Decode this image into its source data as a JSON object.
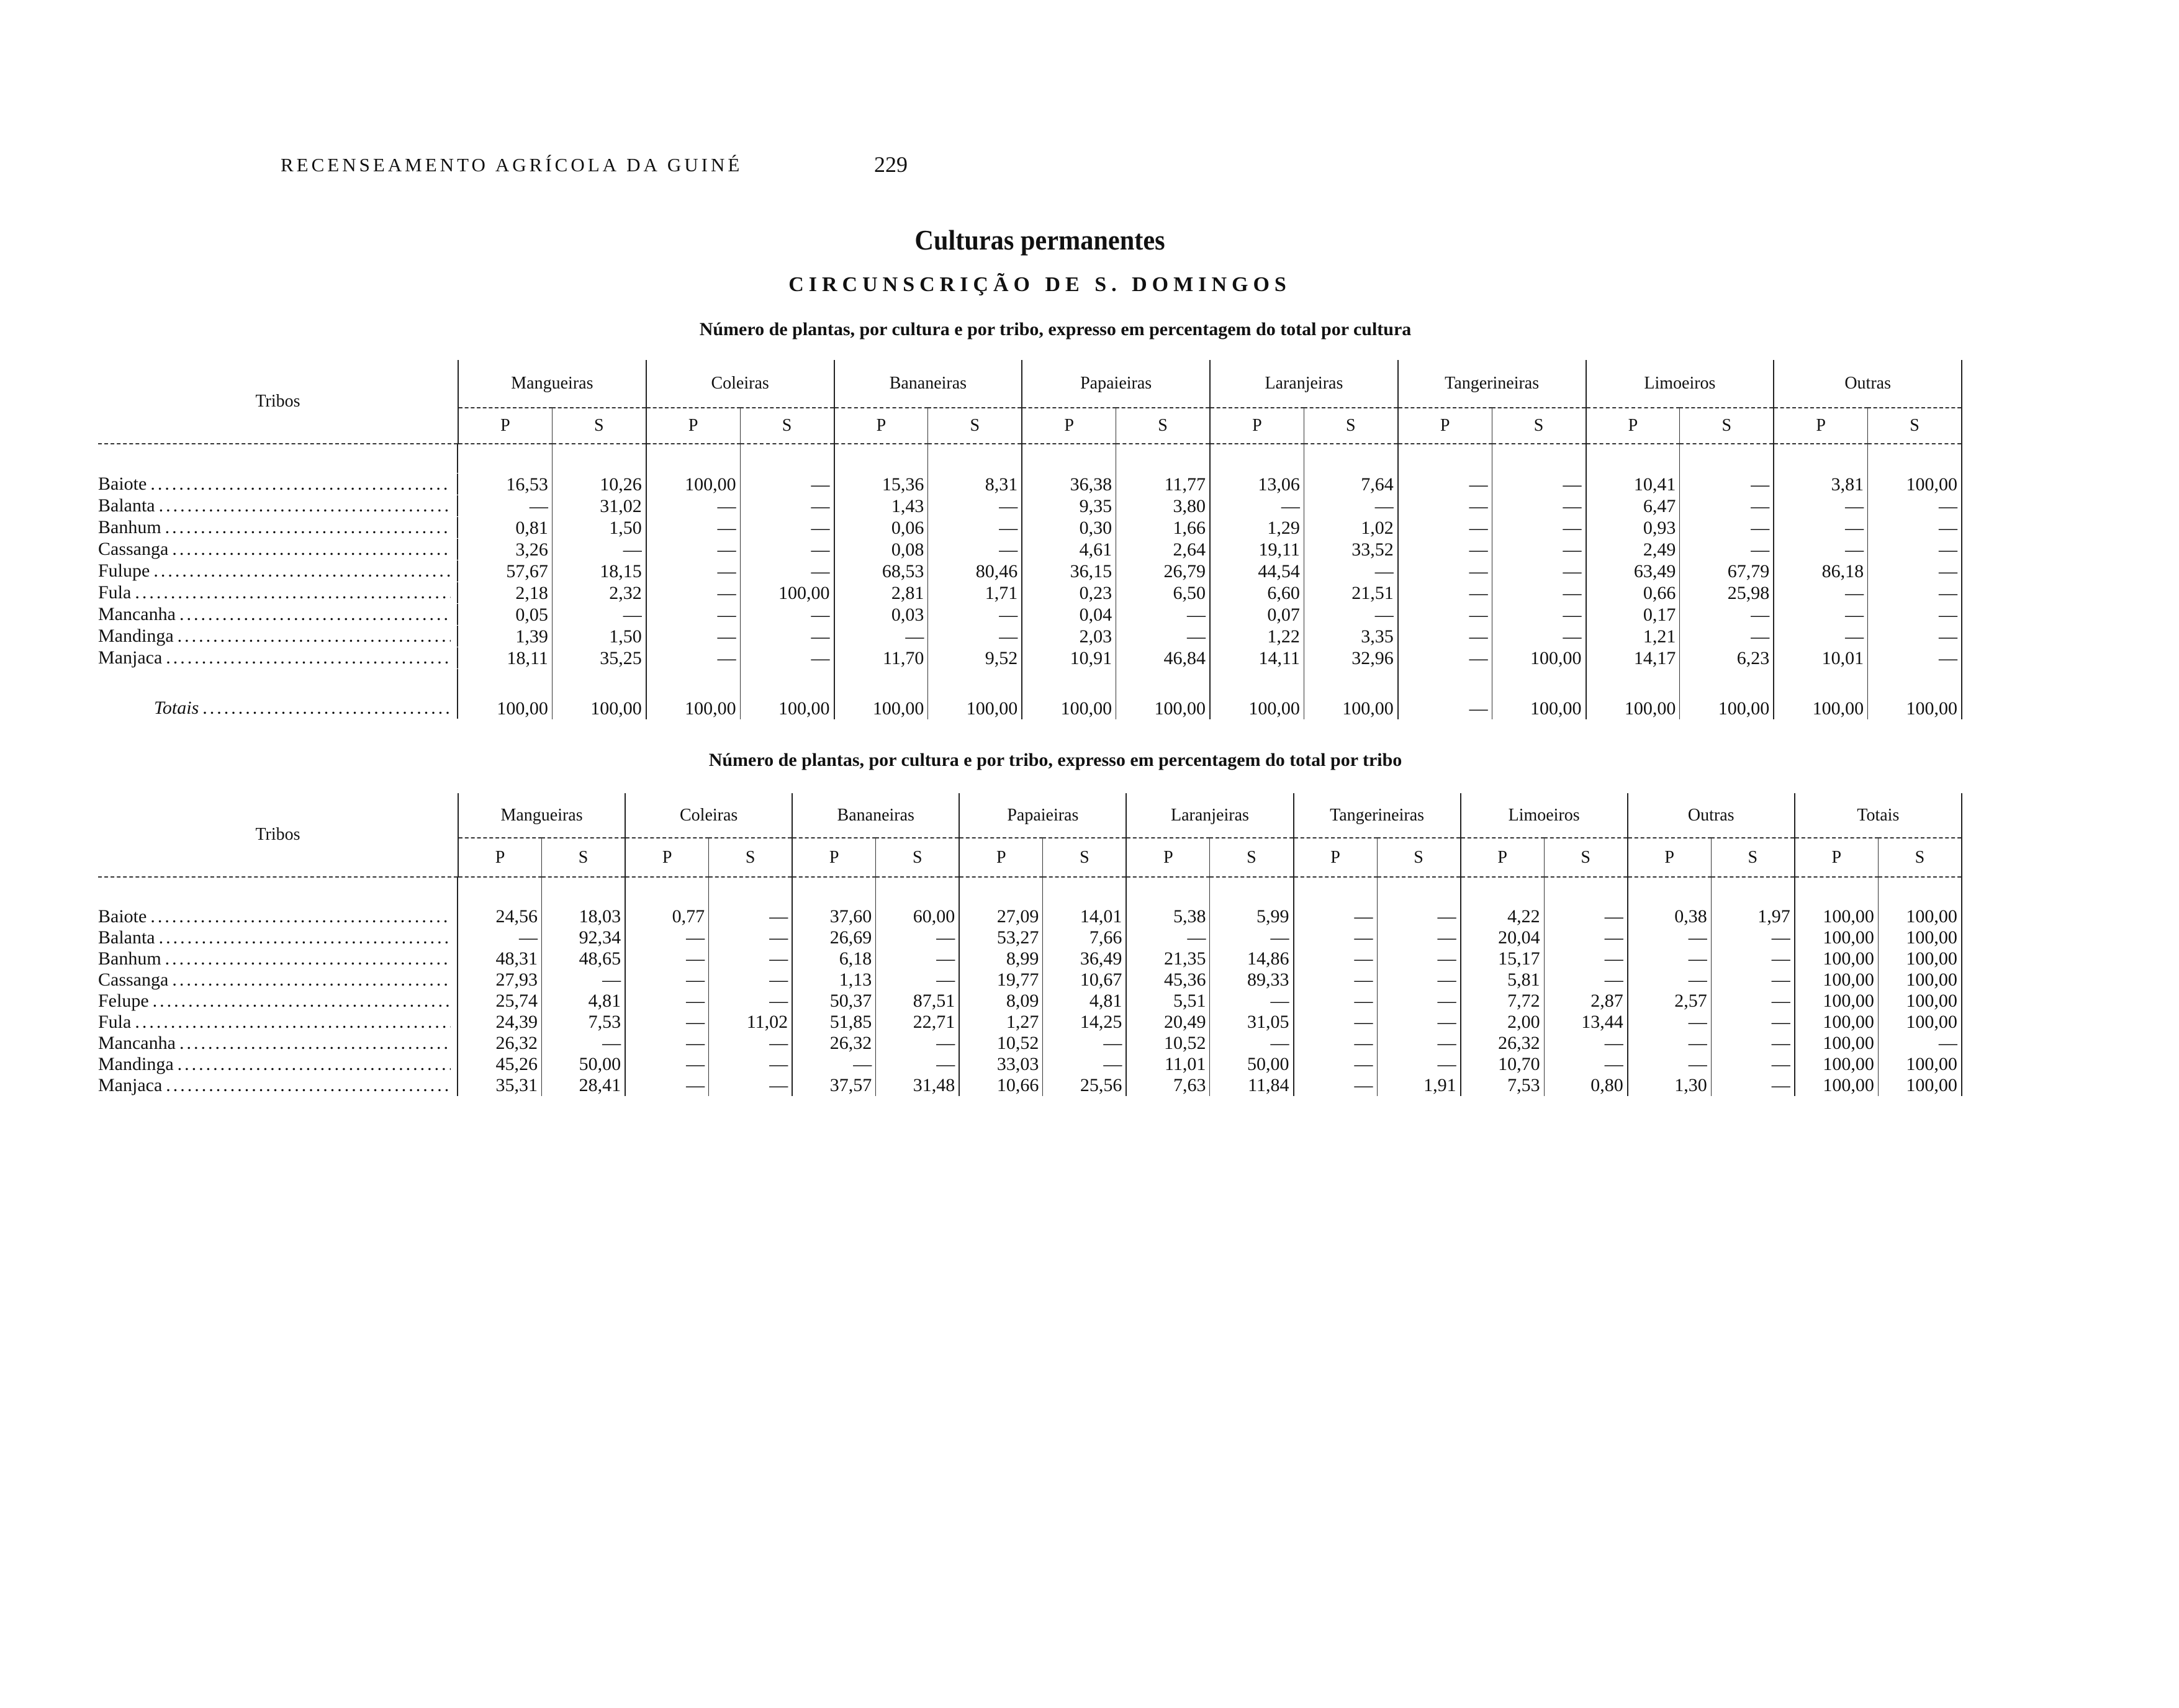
{
  "page": {
    "running_head": "RECENSEAMENTO AGRÍCOLA DA GUINÉ",
    "page_number": "229",
    "title": "Culturas permanentes",
    "subtitle": "CIRCUNSCRIÇÃO DE S. DOMINGOS"
  },
  "table1": {
    "caption": "Número de plantas, por cultura e por tribo, expresso em percentagem do total por cultura",
    "row_header": "Tribos",
    "groups": [
      "Mangueiras",
      "Coleiras",
      "Bananeiras",
      "Papaieiras",
      "Laranjeiras",
      "Tangerineiras",
      "Limoeiros",
      "Outras"
    ],
    "sub_p": "P",
    "sub_s": "S",
    "rows": [
      {
        "tribe": "Baiote",
        "values": [
          "16,53",
          "10,26",
          "100,00",
          "—",
          "15,36",
          "8,31",
          "36,38",
          "11,77",
          "13,06",
          "7,64",
          "—",
          "—",
          "10,41",
          "—",
          "3,81",
          "100,00"
        ]
      },
      {
        "tribe": "Balanta",
        "values": [
          "—",
          "31,02",
          "—",
          "—",
          "1,43",
          "—",
          "9,35",
          "3,80",
          "—",
          "—",
          "—",
          "—",
          "6,47",
          "—",
          "—",
          "—"
        ]
      },
      {
        "tribe": "Banhum",
        "values": [
          "0,81",
          "1,50",
          "—",
          "—",
          "0,06",
          "—",
          "0,30",
          "1,66",
          "1,29",
          "1,02",
          "—",
          "—",
          "0,93",
          "—",
          "—",
          "—"
        ]
      },
      {
        "tribe": "Cassanga",
        "values": [
          "3,26",
          "—",
          "—",
          "—",
          "0,08",
          "—",
          "4,61",
          "2,64",
          "19,11",
          "33,52",
          "—",
          "—",
          "2,49",
          "—",
          "—",
          "—"
        ]
      },
      {
        "tribe": "Fulupe",
        "values": [
          "57,67",
          "18,15",
          "—",
          "—",
          "68,53",
          "80,46",
          "36,15",
          "26,79",
          "44,54",
          "—",
          "—",
          "—",
          "63,49",
          "67,79",
          "86,18",
          "—"
        ]
      },
      {
        "tribe": "Fula",
        "values": [
          "2,18",
          "2,32",
          "—",
          "100,00",
          "2,81",
          "1,71",
          "0,23",
          "6,50",
          "6,60",
          "21,51",
          "—",
          "—",
          "0,66",
          "25,98",
          "—",
          "—"
        ]
      },
      {
        "tribe": "Mancanha",
        "values": [
          "0,05",
          "—",
          "—",
          "—",
          "0,03",
          "—",
          "0,04",
          "—",
          "0,07",
          "—",
          "—",
          "—",
          "0,17",
          "—",
          "—",
          "—"
        ]
      },
      {
        "tribe": "Mandinga",
        "values": [
          "1,39",
          "1,50",
          "—",
          "—",
          "—",
          "—",
          "2,03",
          "—",
          "1,22",
          "3,35",
          "—",
          "—",
          "1,21",
          "—",
          "—",
          "—"
        ]
      },
      {
        "tribe": "Manjaca",
        "values": [
          "18,11",
          "35,25",
          "—",
          "—",
          "11,70",
          "9,52",
          "10,91",
          "46,84",
          "14,11",
          "32,96",
          "—",
          "100,00",
          "14,17",
          "6,23",
          "10,01",
          "—"
        ]
      }
    ],
    "totals": {
      "label": "Totais",
      "values": [
        "100,00",
        "100,00",
        "100,00",
        "100,00",
        "100,00",
        "100,00",
        "100,00",
        "100,00",
        "100,00",
        "100,00",
        "—",
        "100,00",
        "100,00",
        "100,00",
        "100,00",
        "100,00"
      ]
    }
  },
  "table2": {
    "caption": "Número de plantas, por cultura e por tribo, expresso em percentagem do total por tribo",
    "row_header": "Tribos",
    "groups": [
      "Mangueiras",
      "Coleiras",
      "Bananeiras",
      "Papaieiras",
      "Laranjeiras",
      "Tangerineiras",
      "Limoeiros",
      "Outras",
      "Totais"
    ],
    "sub_p": "P",
    "sub_s": "S",
    "rows": [
      {
        "tribe": "Baiote",
        "values": [
          "24,56",
          "18,03",
          "0,77",
          "—",
          "37,60",
          "60,00",
          "27,09",
          "14,01",
          "5,38",
          "5,99",
          "—",
          "—",
          "4,22",
          "—",
          "0,38",
          "1,97",
          "100,00",
          "100,00"
        ]
      },
      {
        "tribe": "Balanta",
        "values": [
          "—",
          "92,34",
          "—",
          "—",
          "26,69",
          "—",
          "53,27",
          "7,66",
          "—",
          "—",
          "—",
          "—",
          "20,04",
          "—",
          "—",
          "—",
          "100,00",
          "100,00"
        ]
      },
      {
        "tribe": "Banhum",
        "values": [
          "48,31",
          "48,65",
          "—",
          "—",
          "6,18",
          "—",
          "8,99",
          "36,49",
          "21,35",
          "14,86",
          "—",
          "—",
          "15,17",
          "—",
          "—",
          "—",
          "100,00",
          "100,00"
        ]
      },
      {
        "tribe": "Cassanga",
        "values": [
          "27,93",
          "—",
          "—",
          "—",
          "1,13",
          "—",
          "19,77",
          "10,67",
          "45,36",
          "89,33",
          "—",
          "—",
          "5,81",
          "—",
          "—",
          "—",
          "100,00",
          "100,00"
        ]
      },
      {
        "tribe": "Felupe",
        "values": [
          "25,74",
          "4,81",
          "—",
          "—",
          "50,37",
          "87,51",
          "8,09",
          "4,81",
          "5,51",
          "—",
          "—",
          "—",
          "7,72",
          "2,87",
          "2,57",
          "—",
          "100,00",
          "100,00"
        ]
      },
      {
        "tribe": "Fula",
        "values": [
          "24,39",
          "7,53",
          "—",
          "11,02",
          "51,85",
          "22,71",
          "1,27",
          "14,25",
          "20,49",
          "31,05",
          "—",
          "—",
          "2,00",
          "13,44",
          "—",
          "—",
          "100,00",
          "100,00"
        ]
      },
      {
        "tribe": "Mancanha",
        "values": [
          "26,32",
          "—",
          "—",
          "—",
          "26,32",
          "—",
          "10,52",
          "—",
          "10,52",
          "—",
          "—",
          "—",
          "26,32",
          "—",
          "—",
          "—",
          "100,00",
          "—"
        ]
      },
      {
        "tribe": "Mandinga",
        "values": [
          "45,26",
          "50,00",
          "—",
          "—",
          "—",
          "—",
          "33,03",
          "—",
          "11,01",
          "50,00",
          "—",
          "—",
          "10,70",
          "—",
          "—",
          "—",
          "100,00",
          "100,00"
        ]
      },
      {
        "tribe": "Manjaca",
        "values": [
          "35,31",
          "28,41",
          "—",
          "—",
          "37,57",
          "31,48",
          "10,66",
          "25,56",
          "7,63",
          "11,84",
          "—",
          "1,91",
          "7,53",
          "0,80",
          "1,30",
          "—",
          "100,00",
          "100,00"
        ]
      }
    ]
  }
}
